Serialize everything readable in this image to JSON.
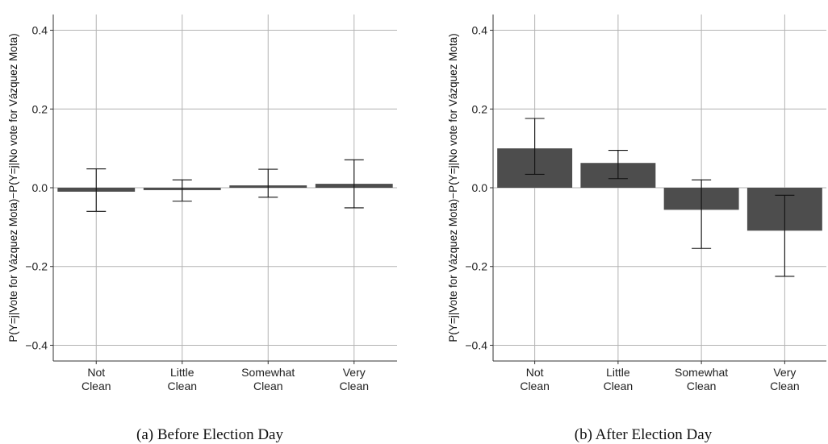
{
  "panels": [
    {
      "caption": "(a)  Before Election Day",
      "ylabel": "P(Y=j|Vote for Vázquez Mota)−P(Y=j|No vote for Vázquez Mota)"
    },
    {
      "caption": "(b)  After Election Day",
      "ylabel": "P(Y=j|Vote for Vázquez Mota)−P(Y=j|No vote for Vázquez Mota)"
    }
  ],
  "chart_data": [
    {
      "type": "bar",
      "title": "",
      "xlabel": "",
      "ylabel": "P(Y=j|Vote for Vázquez Mota)−P(Y=j|No vote for Vázquez Mota)",
      "categories": [
        [
          "Not",
          "Clean"
        ],
        [
          "Little",
          "Clean"
        ],
        [
          "Somewhat",
          "Clean"
        ],
        [
          "Very",
          "Clean"
        ]
      ],
      "values": [
        -0.01,
        -0.006,
        0.006,
        0.01
      ],
      "error_low": [
        -0.06,
        -0.034,
        -0.024,
        -0.051
      ],
      "error_high": [
        0.048,
        0.02,
        0.047,
        0.071
      ],
      "ylim": [
        -0.44,
        0.44
      ],
      "yticks": [
        -0.4,
        -0.2,
        0.0,
        0.2,
        0.4
      ],
      "ytick_labels": [
        "−0.4",
        "−0.2",
        "0.0",
        "0.2",
        "0.4"
      ],
      "grid": true,
      "bar_color": "#4d4d4d"
    },
    {
      "type": "bar",
      "title": "",
      "xlabel": "",
      "ylabel": "P(Y=j|Vote for Vázquez Mota)−P(Y=j|No vote for Vázquez Mota)",
      "categories": [
        [
          "Not",
          "Clean"
        ],
        [
          "Little",
          "Clean"
        ],
        [
          "Somewhat",
          "Clean"
        ],
        [
          "Very",
          "Clean"
        ]
      ],
      "values": [
        0.1,
        0.063,
        -0.056,
        -0.109
      ],
      "error_low": [
        0.034,
        0.023,
        -0.154,
        -0.225
      ],
      "error_high": [
        0.176,
        0.095,
        0.02,
        -0.019
      ],
      "ylim": [
        -0.44,
        0.44
      ],
      "yticks": [
        -0.4,
        -0.2,
        0.0,
        0.2,
        0.4
      ],
      "ytick_labels": [
        "−0.4",
        "−0.2",
        "0.0",
        "0.2",
        "0.4"
      ],
      "grid": true,
      "bar_color": "#4d4d4d"
    }
  ]
}
